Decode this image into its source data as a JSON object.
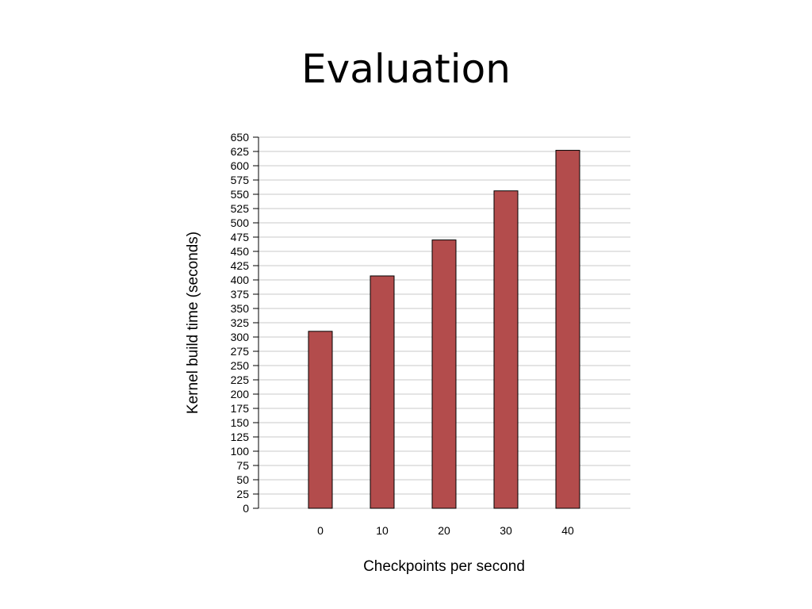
{
  "slide": {
    "title": "Evaluation"
  },
  "chart_data": {
    "type": "bar",
    "categories": [
      "0",
      "10",
      "20",
      "30",
      "40"
    ],
    "values": [
      310,
      407,
      470,
      556,
      627
    ],
    "title": "",
    "xlabel": "Checkpoints per second",
    "ylabel": "Kernel build time (seconds)",
    "ylim": [
      0,
      650
    ],
    "ytick_step": 25,
    "grid": true,
    "bar_color": "#b34c4c",
    "bar_edge_color": "#000000",
    "grid_color": "#c8c8c8"
  }
}
